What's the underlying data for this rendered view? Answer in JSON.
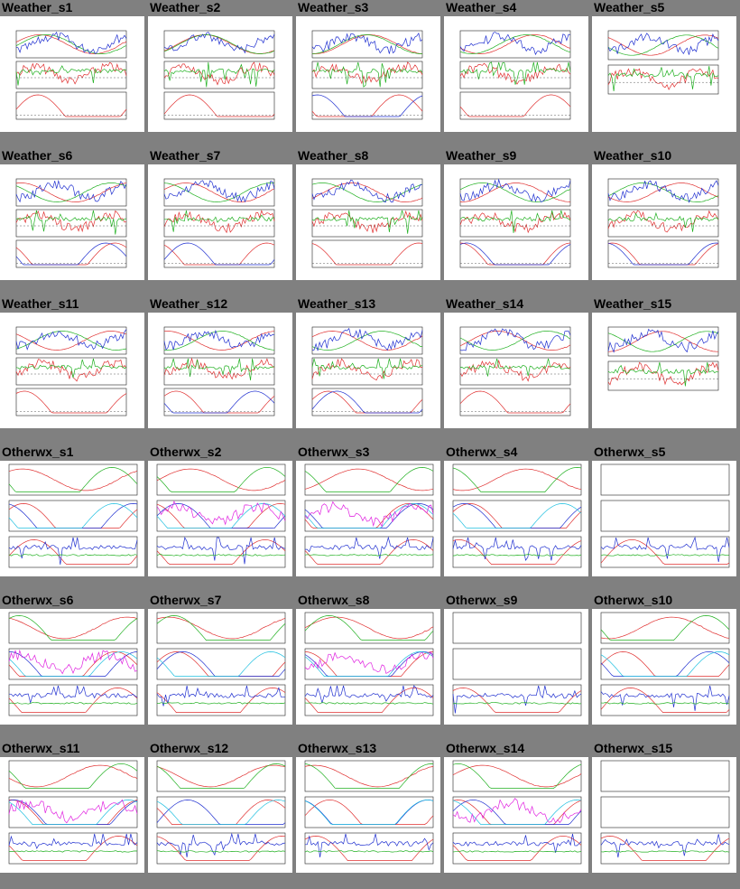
{
  "colors": {
    "page_background": "#808080",
    "thumbnail_background": "#ffffff",
    "trace_red": "#e03030",
    "trace_green": "#20b020",
    "trace_blue": "#2030d0",
    "trace_cyan": "#20c0e0",
    "trace_magenta": "#e020e0",
    "frame": "#222222",
    "dashed_ref": "#333333"
  },
  "gallery": {
    "rows": [
      {
        "group": "weather",
        "items": [
          {
            "label": "Weather_s1",
            "panels": 3,
            "status": "plot"
          },
          {
            "label": "Weather_s2",
            "panels": 3,
            "status": "plot"
          },
          {
            "label": "Weather_s3",
            "panels": 3,
            "status": "plot"
          },
          {
            "label": "Weather_s4",
            "panels": 3,
            "status": "plot"
          },
          {
            "label": "Weather_s5",
            "panels": 2,
            "status": "plot"
          }
        ]
      },
      {
        "group": "weather",
        "items": [
          {
            "label": "Weather_s6",
            "panels": 3,
            "status": "plot"
          },
          {
            "label": "Weather_s7",
            "panels": 3,
            "status": "plot"
          },
          {
            "label": "Weather_s8",
            "panels": 3,
            "status": "plot"
          },
          {
            "label": "Weather_s9",
            "panels": 3,
            "status": "plot"
          },
          {
            "label": "Weather_s10",
            "panels": 3,
            "status": "plot"
          }
        ]
      },
      {
        "group": "weather",
        "items": [
          {
            "label": "Weather_s11",
            "panels": 3,
            "status": "plot"
          },
          {
            "label": "Weather_s12",
            "panels": 3,
            "status": "plot"
          },
          {
            "label": "Weather_s13",
            "panels": 3,
            "status": "plot"
          },
          {
            "label": "Weather_s14",
            "panels": 3,
            "status": "plot"
          },
          {
            "label": "Weather_s15",
            "panels": 2,
            "status": "plot"
          }
        ]
      },
      {
        "group": "otherwx",
        "items": [
          {
            "label": "Otherwx_s1",
            "panels": 3,
            "status": "plot"
          },
          {
            "label": "Otherwx_s2",
            "panels": 3,
            "status": "plot"
          },
          {
            "label": "Otherwx_s3",
            "panels": 3,
            "status": "plot"
          },
          {
            "label": "Otherwx_s4",
            "panels": 3,
            "status": "plot"
          },
          {
            "label": "Otherwx_s5",
            "panels": 3,
            "status": "empty-top"
          }
        ]
      },
      {
        "group": "otherwx",
        "items": [
          {
            "label": "Otherwx_s6",
            "panels": 3,
            "status": "plot"
          },
          {
            "label": "Otherwx_s7",
            "panels": 3,
            "status": "plot"
          },
          {
            "label": "Otherwx_s8",
            "panels": 3,
            "status": "plot"
          },
          {
            "label": "Otherwx_s9",
            "panels": 3,
            "status": "empty-top"
          },
          {
            "label": "Otherwx_s10",
            "panels": 3,
            "status": "plot"
          }
        ]
      },
      {
        "group": "otherwx",
        "items": [
          {
            "label": "Otherwx_s11",
            "panels": 3,
            "status": "plot"
          },
          {
            "label": "Otherwx_s12",
            "panels": 3,
            "status": "plot"
          },
          {
            "label": "Otherwx_s13",
            "panels": 3,
            "status": "plot"
          },
          {
            "label": "Otherwx_s14",
            "panels": 3,
            "status": "plot"
          },
          {
            "label": "Otherwx_s15",
            "panels": 3,
            "status": "empty-top"
          }
        ]
      }
    ]
  }
}
